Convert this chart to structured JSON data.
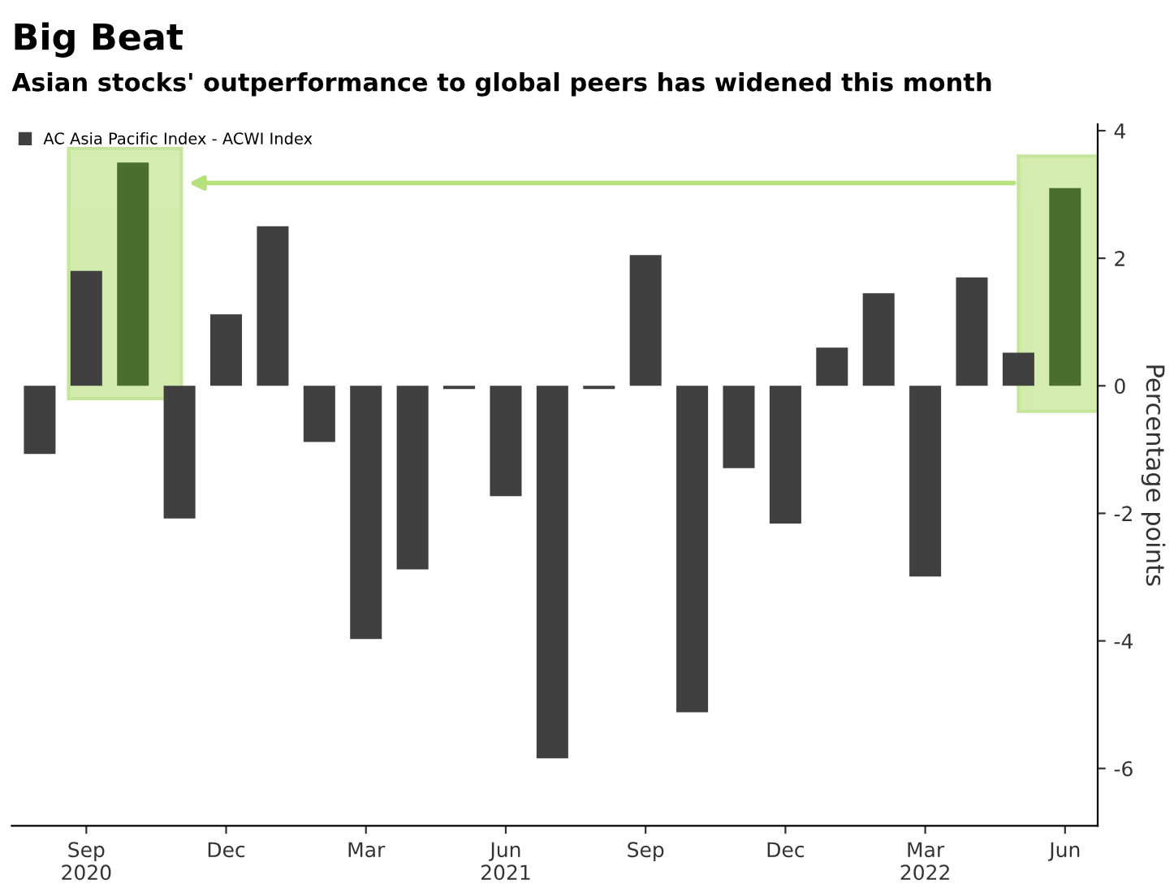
{
  "chart_data": {
    "type": "bar",
    "title": "Big Beat",
    "subtitle": "Asian stocks' outperformance to global peers has widened this month",
    "ylabel": "Percentage points",
    "categories": [
      null,
      "Sep\n2020",
      null,
      null,
      "Dec",
      null,
      null,
      "Mar",
      null,
      null,
      "Jun\n2021",
      null,
      null,
      "Sep",
      null,
      null,
      "Dec",
      null,
      null,
      "Mar\n2022",
      null,
      null,
      "Jun"
    ],
    "series": [
      {
        "name": "AC Asia Pacific Index - ACWI Index",
        "color": "#404040",
        "colors": [
          "#404040",
          "#404040",
          "#4a6e2c",
          "#404040",
          "#404040",
          "#404040",
          "#404040",
          "#404040",
          "#404040",
          "#404040",
          "#404040",
          "#404040",
          "#404040",
          "#404040",
          "#404040",
          "#404040",
          "#404040",
          "#404040",
          "#404040",
          "#404040",
          "#404040",
          "#404040",
          "#4a6e2c"
        ],
        "values": [
          -1.07,
          1.8,
          3.5,
          -2.08,
          1.12,
          2.5,
          -0.88,
          -3.97,
          -2.88,
          -0.05,
          -1.73,
          -5.84,
          -0.05,
          2.05,
          -5.12,
          -1.29,
          -2.16,
          0.6,
          1.45,
          -2.99,
          1.7,
          0.52,
          3.1
        ]
      }
    ],
    "ylim": [
      -6.9,
      4.1
    ],
    "yticks": [
      -6,
      -4,
      -2,
      0,
      2,
      4
    ],
    "grid": false,
    "legend": "top left"
  }
}
